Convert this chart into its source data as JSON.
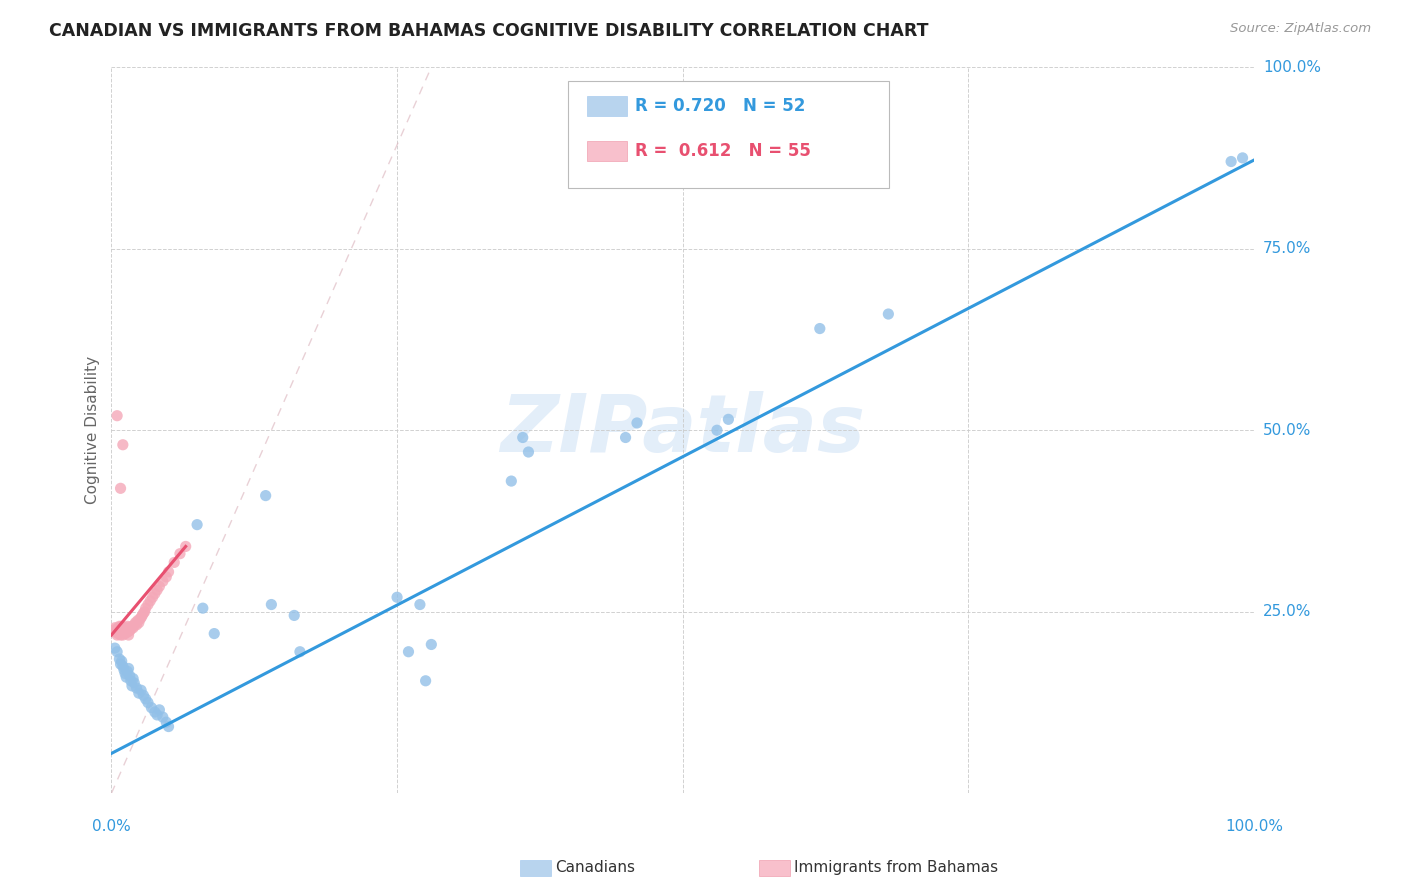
{
  "title": "CANADIAN VS IMMIGRANTS FROM BAHAMAS COGNITIVE DISABILITY CORRELATION CHART",
  "source": "Source: ZipAtlas.com",
  "ylabel": "Cognitive Disability",
  "watermark": "ZIPatlas",
  "canadian_color": "#92c0e8",
  "bahamas_color": "#f4a8b8",
  "canadian_line_color": "#3399dd",
  "bahamas_line_color": "#e85070",
  "dashed_line_color": "#e8c0c8",
  "blue_text_color": "#3399dd",
  "pink_text_color": "#e85070",
  "tick_color": "#3399dd",
  "canadian_x": [
    0.003,
    0.005,
    0.007,
    0.008,
    0.009,
    0.01,
    0.011,
    0.012,
    0.013,
    0.014,
    0.015,
    0.016,
    0.017,
    0.018,
    0.019,
    0.02,
    0.022,
    0.024,
    0.026,
    0.028,
    0.03,
    0.032,
    0.035,
    0.038,
    0.04,
    0.042,
    0.045,
    0.048,
    0.05,
    0.075,
    0.08,
    0.09,
    0.135,
    0.14,
    0.16,
    0.165,
    0.25,
    0.26,
    0.27,
    0.275,
    0.28,
    0.35,
    0.36,
    0.365,
    0.45,
    0.46,
    0.53,
    0.54,
    0.62,
    0.68,
    0.98,
    0.99
  ],
  "canadian_y": [
    0.2,
    0.195,
    0.185,
    0.178,
    0.182,
    0.175,
    0.17,
    0.165,
    0.16,
    0.168,
    0.172,
    0.162,
    0.155,
    0.148,
    0.158,
    0.152,
    0.145,
    0.138,
    0.142,
    0.135,
    0.13,
    0.125,
    0.118,
    0.112,
    0.108,
    0.115,
    0.105,
    0.098,
    0.092,
    0.37,
    0.255,
    0.22,
    0.41,
    0.26,
    0.245,
    0.195,
    0.27,
    0.195,
    0.26,
    0.155,
    0.205,
    0.43,
    0.49,
    0.47,
    0.49,
    0.51,
    0.5,
    0.515,
    0.64,
    0.66,
    0.87,
    0.875
  ],
  "bahamas_x": [
    0.002,
    0.003,
    0.004,
    0.005,
    0.005,
    0.006,
    0.006,
    0.007,
    0.007,
    0.008,
    0.008,
    0.009,
    0.009,
    0.01,
    0.01,
    0.011,
    0.011,
    0.012,
    0.012,
    0.013,
    0.013,
    0.014,
    0.014,
    0.015,
    0.015,
    0.016,
    0.017,
    0.018,
    0.019,
    0.02,
    0.021,
    0.022,
    0.023,
    0.024,
    0.025,
    0.026,
    0.027,
    0.028,
    0.029,
    0.03,
    0.032,
    0.034,
    0.036,
    0.038,
    0.04,
    0.042,
    0.045,
    0.048,
    0.05,
    0.055,
    0.06,
    0.065,
    0.005,
    0.01,
    0.008
  ],
  "bahamas_y": [
    0.225,
    0.228,
    0.222,
    0.218,
    0.225,
    0.22,
    0.228,
    0.222,
    0.23,
    0.225,
    0.218,
    0.222,
    0.23,
    0.218,
    0.226,
    0.222,
    0.228,
    0.22,
    0.226,
    0.222,
    0.228,
    0.222,
    0.23,
    0.224,
    0.218,
    0.224,
    0.226,
    0.23,
    0.228,
    0.232,
    0.235,
    0.232,
    0.238,
    0.235,
    0.24,
    0.242,
    0.245,
    0.248,
    0.25,
    0.255,
    0.26,
    0.265,
    0.27,
    0.275,
    0.28,
    0.285,
    0.292,
    0.298,
    0.305,
    0.318,
    0.33,
    0.34,
    0.52,
    0.48,
    0.42
  ],
  "xlim": [
    0.0,
    1.0
  ],
  "ylim": [
    0.0,
    1.0
  ],
  "can_line_x0": 0.0,
  "can_line_y0": 0.055,
  "can_line_x1": 1.0,
  "can_line_y1": 0.872,
  "bah_line_x0": 0.0,
  "bah_line_y0": 0.218,
  "bah_line_x1": 0.065,
  "bah_line_y1": 0.34,
  "dash_line_x0": 0.0,
  "dash_line_y0": 0.0,
  "dash_line_x1": 0.28,
  "dash_line_y1": 1.0,
  "fig_width": 14.06,
  "fig_height": 8.92,
  "dpi": 100
}
